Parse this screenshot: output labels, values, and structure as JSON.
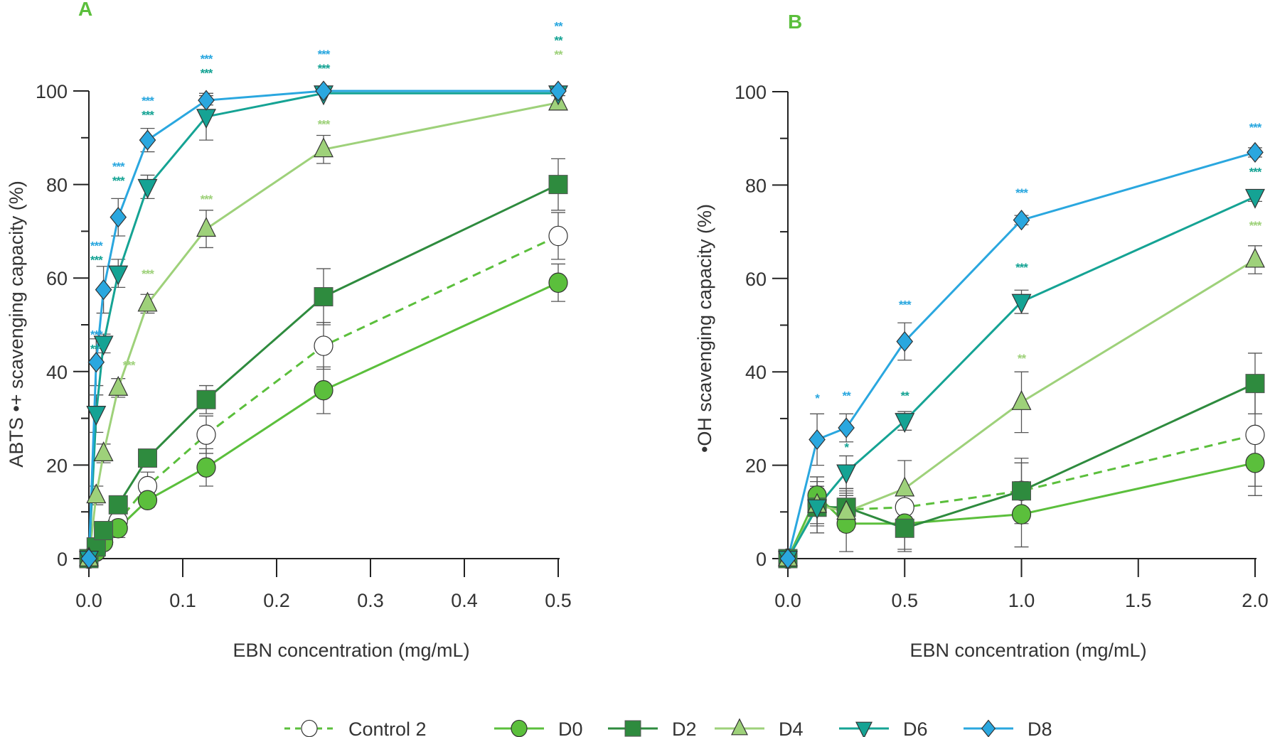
{
  "legend": [
    {
      "name": "Control 2",
      "color": "#5bbf3c",
      "marker": "circle-open",
      "dashed": true
    },
    {
      "name": "D0",
      "color": "#5bbf3c",
      "marker": "circle",
      "dashed": false
    },
    {
      "name": "D2",
      "color": "#2e8b3e",
      "marker": "square",
      "dashed": false
    },
    {
      "name": "D4",
      "color": "#9ed17a",
      "marker": "triangle-up",
      "dashed": false
    },
    {
      "name": "D6",
      "color": "#15a394",
      "marker": "triangle-down",
      "dashed": false
    },
    {
      "name": "D8",
      "color": "#2aa7df",
      "marker": "diamond",
      "dashed": false
    }
  ],
  "chart_data": [
    {
      "panel": "A",
      "type": "line",
      "title": "",
      "xlabel": "EBN concentration (mg/mL)",
      "ylabel": "ABTS •+ scavenging capacity (%)",
      "xlim": [
        0,
        0.5
      ],
      "ylim": [
        0,
        100
      ],
      "xticks": [
        "0.0",
        "0.1",
        "0.2",
        "0.3",
        "0.4",
        "0.5"
      ],
      "xtick_values": [
        0,
        0.1,
        0.2,
        0.3,
        0.4,
        0.5
      ],
      "yticks": [
        "0",
        "20",
        "40",
        "60",
        "80",
        "100"
      ],
      "ytick_values": [
        0,
        20,
        40,
        60,
        80,
        100
      ],
      "y_minor_ticks": [
        10,
        30,
        50,
        70,
        90
      ],
      "grid": false,
      "legend_position": "bottom",
      "x": [
        0,
        0.0078,
        0.0156,
        0.03125,
        0.0625,
        0.125,
        0.25,
        0.5
      ],
      "series": [
        {
          "name": "Control 2",
          "values": [
            0,
            1.5,
            3.5,
            8,
            15.5,
            26.5,
            45.5,
            69
          ],
          "errors": [
            0.5,
            1,
            1,
            1.5,
            3,
            4,
            5,
            5
          ]
        },
        {
          "name": "D0",
          "values": [
            0,
            1.5,
            3.5,
            6.5,
            12.5,
            19.5,
            36,
            59
          ],
          "errors": [
            0.5,
            1,
            1,
            2,
            1.5,
            4,
            5,
            4
          ]
        },
        {
          "name": "D2",
          "values": [
            0,
            2.5,
            6,
            11.5,
            21.5,
            34,
            56,
            80
          ],
          "errors": [
            0.5,
            1,
            1,
            1.5,
            1,
            3,
            6,
            5.5
          ]
        },
        {
          "name": "D4",
          "values": [
            0,
            13.5,
            22.5,
            36.5,
            54.5,
            70.5,
            87.5,
            97.5
          ],
          "errors": [
            1,
            2,
            2,
            2,
            2,
            4,
            3,
            1.5
          ]
        },
        {
          "name": "D6",
          "values": [
            0,
            31,
            46,
            61,
            79.5,
            94.5,
            99.5,
            99.5
          ],
          "errors": [
            1,
            4,
            2,
            3,
            2.5,
            5,
            0.5,
            0.5
          ]
        },
        {
          "name": "D8",
          "values": [
            0,
            42,
            57.5,
            73,
            89.5,
            98,
            100,
            100
          ],
          "errors": [
            1,
            5,
            5,
            4,
            2.5,
            1,
            0.5,
            0.5
          ]
        }
      ],
      "annotations": [
        {
          "x": 0.0078,
          "lines": [
            {
              "text": "***",
              "series": "D8"
            },
            {
              "text": "***",
              "series": "D6"
            }
          ],
          "y": 47
        },
        {
          "x": 0.0078,
          "lines": [
            {
              "text": "***",
              "series": "D8"
            },
            {
              "text": "***",
              "series": "D6"
            }
          ],
          "y": 66
        },
        {
          "x": 0.03125,
          "lines": [
            {
              "text": "***",
              "series": "D8"
            },
            {
              "text": "***",
              "series": "D6"
            }
          ],
          "y": 83
        },
        {
          "x": 0.0625,
          "lines": [
            {
              "text": "***",
              "series": "D8"
            },
            {
              "text": "***",
              "series": "D6"
            }
          ],
          "y": 97
        },
        {
          "x": 0.125,
          "lines": [
            {
              "text": "***",
              "series": "D8"
            },
            {
              "text": "***",
              "series": "D6"
            }
          ],
          "y": 106
        },
        {
          "x": 0.25,
          "lines": [
            {
              "text": "***",
              "series": "D8"
            },
            {
              "text": "***",
              "series": "D6"
            }
          ],
          "y": 107
        },
        {
          "x": 0.5,
          "lines": [
            {
              "text": "**",
              "series": "D8"
            },
            {
              "text": "**",
              "series": "D6"
            },
            {
              "text": "**",
              "series": "D4"
            }
          ],
          "y": 113
        },
        {
          "x": 0.0425,
          "lines": [
            {
              "text": "***",
              "series": "D4"
            }
          ],
          "y": 40.5
        },
        {
          "x": 0.0625,
          "lines": [
            {
              "text": "***",
              "series": "D4"
            }
          ],
          "y": 60
        },
        {
          "x": 0.125,
          "lines": [
            {
              "text": "***",
              "series": "D4"
            }
          ],
          "y": 76
        },
        {
          "x": 0.25,
          "lines": [
            {
              "text": "***",
              "series": "D4"
            }
          ],
          "y": 92
        }
      ]
    },
    {
      "panel": "B",
      "type": "line",
      "title": "",
      "xlabel": "EBN concentration (mg/mL)",
      "ylabel": "•OH scavenging capacity (%)",
      "xlim": [
        0,
        2.0
      ],
      "ylim": [
        0,
        100
      ],
      "xticks": [
        "0.0",
        "0.5",
        "1.0",
        "1.5",
        "2.0"
      ],
      "xtick_values": [
        0,
        0.5,
        1.0,
        1.5,
        2.0
      ],
      "yticks": [
        "0",
        "20",
        "40",
        "60",
        "80",
        "100"
      ],
      "ytick_values": [
        0,
        20,
        40,
        60,
        80,
        100
      ],
      "y_minor_ticks": [
        10,
        30,
        50,
        70,
        90
      ],
      "grid": false,
      "legend_position": "bottom",
      "x": [
        0,
        0.125,
        0.25,
        0.5,
        1.0,
        2.0
      ],
      "series": [
        {
          "name": "Control 2",
          "values": [
            0,
            11.5,
            10.5,
            11,
            14.5,
            26.5
          ],
          "errors": [
            0.5,
            6,
            4,
            3,
            7,
            11
          ]
        },
        {
          "name": "D0",
          "values": [
            0,
            13.5,
            7.5,
            7.5,
            9.5,
            20.5
          ],
          "errors": [
            0.5,
            4,
            6,
            6,
            7,
            7
          ]
        },
        {
          "name": "D2",
          "values": [
            0,
            11,
            11,
            6.5,
            14.5,
            37.5
          ],
          "errors": [
            0.5,
            5.5,
            4,
            4.5,
            6,
            6.5
          ]
        },
        {
          "name": "D4",
          "values": [
            0,
            11.5,
            10,
            15,
            33.5,
            64
          ],
          "errors": [
            0.5,
            4,
            4,
            6,
            6.5,
            3
          ]
        },
        {
          "name": "D6",
          "values": [
            0,
            11,
            18.5,
            29.5,
            55,
            77.5
          ],
          "errors": [
            0.5,
            4,
            3.5,
            2,
            2.5,
            1
          ]
        },
        {
          "name": "D8",
          "values": [
            0,
            25.5,
            28,
            46.5,
            72.5,
            87
          ],
          "errors": [
            0.5,
            5.5,
            3,
            4,
            1,
            1
          ]
        }
      ],
      "annotations": [
        {
          "x": 0.125,
          "lines": [
            {
              "text": "*",
              "series": "D8"
            }
          ],
          "y": 33.5
        },
        {
          "x": 0.25,
          "lines": [
            {
              "text": "**",
              "series": "D8"
            }
          ],
          "y": 34
        },
        {
          "x": 0.25,
          "lines": [
            {
              "text": "*",
              "series": "D6"
            }
          ],
          "y": 23
        },
        {
          "x": 0.5,
          "lines": [
            {
              "text": "***",
              "series": "D8"
            }
          ],
          "y": 53.5
        },
        {
          "x": 0.5,
          "lines": [
            {
              "text": "**",
              "series": "D6"
            }
          ],
          "y": 34
        },
        {
          "x": 1.0,
          "lines": [
            {
              "text": "***",
              "series": "D8"
            }
          ],
          "y": 77.5
        },
        {
          "x": 1.0,
          "lines": [
            {
              "text": "***",
              "series": "D6"
            }
          ],
          "y": 61.5
        },
        {
          "x": 1.0,
          "lines": [
            {
              "text": "**",
              "series": "D4"
            }
          ],
          "y": 42
        },
        {
          "x": 2.0,
          "lines": [
            {
              "text": "***",
              "series": "D8"
            }
          ],
          "y": 91.5
        },
        {
          "x": 2.0,
          "lines": [
            {
              "text": "***",
              "series": "D6"
            }
          ],
          "y": 82
        },
        {
          "x": 2.0,
          "lines": [
            {
              "text": "***",
              "series": "D4"
            }
          ],
          "y": 70.5
        }
      ]
    }
  ],
  "panels": {
    "A": {
      "label": "A"
    },
    "B": {
      "label": "B"
    }
  }
}
